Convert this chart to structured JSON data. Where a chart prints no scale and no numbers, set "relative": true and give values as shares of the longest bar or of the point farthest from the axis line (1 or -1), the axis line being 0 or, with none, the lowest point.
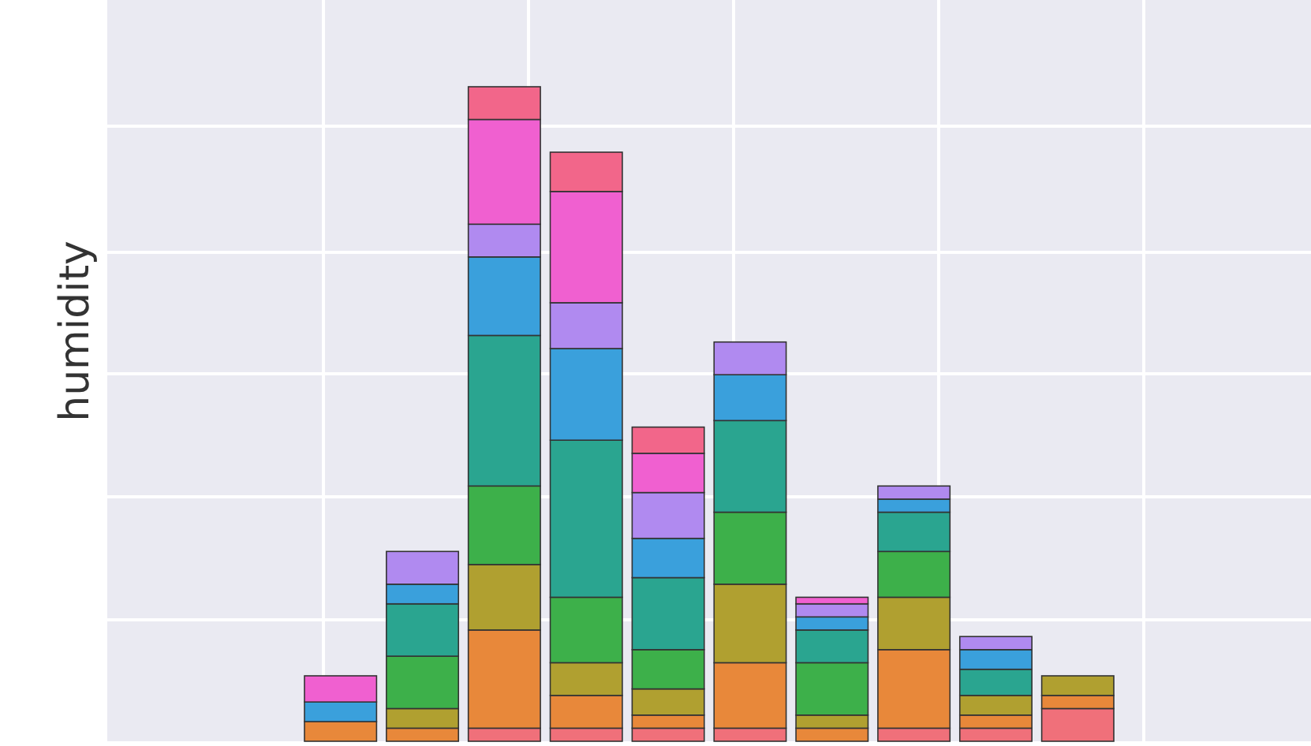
{
  "chart_data": {
    "type": "bar",
    "ylabel": "humidity",
    "relative": true,
    "stacked": true,
    "grid": true,
    "categories": [
      null,
      null,
      null,
      null,
      null,
      null,
      null,
      null,
      null,
      null
    ],
    "series": [
      {
        "color": "#f0707a",
        "values": [
          0,
          0,
          0.02,
          0.02,
          0.02,
          0.02,
          0,
          0.02,
          0.02,
          0.05
        ]
      },
      {
        "color": "#e8883a",
        "values": [
          0.03,
          0.02,
          0.15,
          0.05,
          0.02,
          0.1,
          0.02,
          0.12,
          0.02,
          0.02
        ]
      },
      {
        "color": "#b0a030",
        "values": [
          0,
          0.03,
          0.1,
          0.05,
          0.04,
          0.12,
          0.02,
          0.08,
          0.03,
          0.03
        ]
      },
      {
        "color": "#3db04a",
        "values": [
          0,
          0.08,
          0.12,
          0.1,
          0.06,
          0.11,
          0.08,
          0.07,
          0,
          0
        ]
      },
      {
        "color": "#2aa590",
        "values": [
          0,
          0.08,
          0.23,
          0.24,
          0.11,
          0.14,
          0.05,
          0.06,
          0.04,
          0
        ]
      },
      {
        "color": "#3aa0dc",
        "values": [
          0.03,
          0.03,
          0.12,
          0.14,
          0.06,
          0.07,
          0.02,
          0.02,
          0.03,
          0
        ]
      },
      {
        "color": "#b08af0",
        "values": [
          0,
          0.05,
          0.05,
          0.07,
          0.07,
          0.05,
          0.02,
          0.02,
          0.02,
          0
        ]
      },
      {
        "color": "#f060d0",
        "values": [
          0.04,
          0,
          0.16,
          0.17,
          0.06,
          0,
          0.01,
          0,
          0,
          0
        ]
      },
      {
        "color": "#f2668a",
        "values": [
          0,
          0,
          0.05,
          0.06,
          0.04,
          0,
          0,
          0,
          0,
          0
        ]
      }
    ]
  }
}
